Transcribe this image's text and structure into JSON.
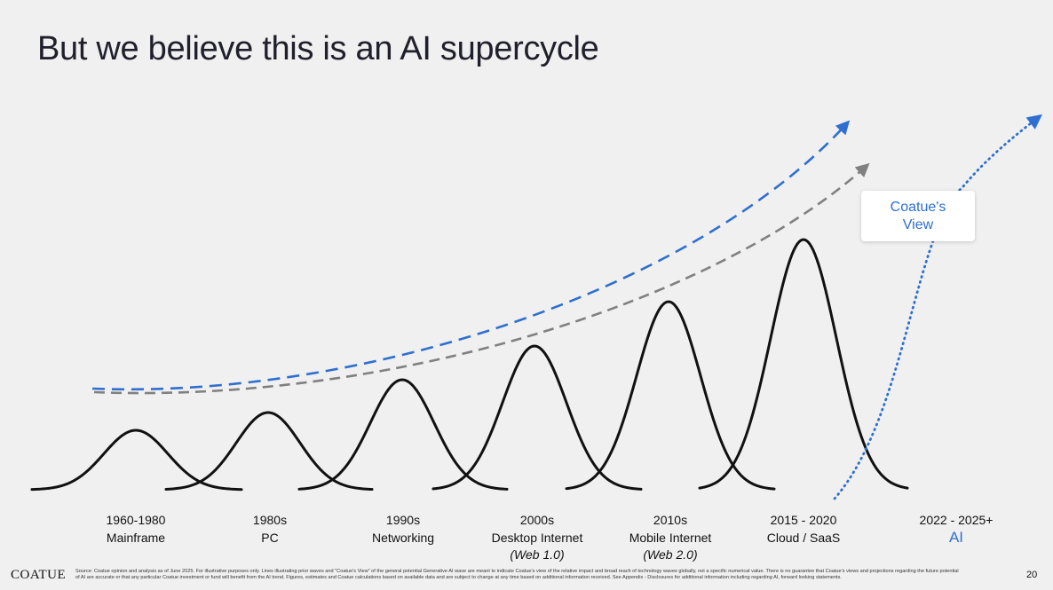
{
  "title": "But we believe this is an AI supercycle",
  "eras": [
    {
      "years": "1960-1980",
      "name": "Mainframe",
      "sub": ""
    },
    {
      "years": "1980s",
      "name": "PC",
      "sub": ""
    },
    {
      "years": "1990s",
      "name": "Networking",
      "sub": ""
    },
    {
      "years": "2000s",
      "name": "Desktop Internet",
      "sub": "(Web 1.0)"
    },
    {
      "years": "2010s",
      "name": "Mobile Internet",
      "sub": "(Web 2.0)"
    },
    {
      "years": "2015 - 2020",
      "name": "Cloud / SaaS",
      "sub": ""
    },
    {
      "years": "2022 - 2025+",
      "name": "AI",
      "sub": ""
    }
  ],
  "view_box": {
    "label": "Coatue's\nView"
  },
  "colors": {
    "wave": "#111111",
    "blue_trend": "#2e6fd0",
    "gray_trend": "#808080",
    "ai_dotted": "#2e6fd0",
    "background": "#f0f0f0"
  },
  "footer": {
    "logo": "COATUE",
    "source": "Source: Coatue opinion and analysis as of June 2025. For illustrative purposes only. Lines illustrating prior waves and \"Coatue's View\" of the general potential Generative AI wave are meant to indicate Coatue's view of the relative impact and broad reach of technology waves globally, not a specific numerical value. There is no guarantee that Coatue's views and projections regarding the future potential of AI are accurate or that any particular Coatue investment or fund will benefit from the AI trend. Figures, estimates and Coatue calculations based on available data and are subject to change at any time based on additional information received. See Appendix - Disclosures for additional information including regarding AI, forward looking statements.",
    "page_number": "20"
  }
}
